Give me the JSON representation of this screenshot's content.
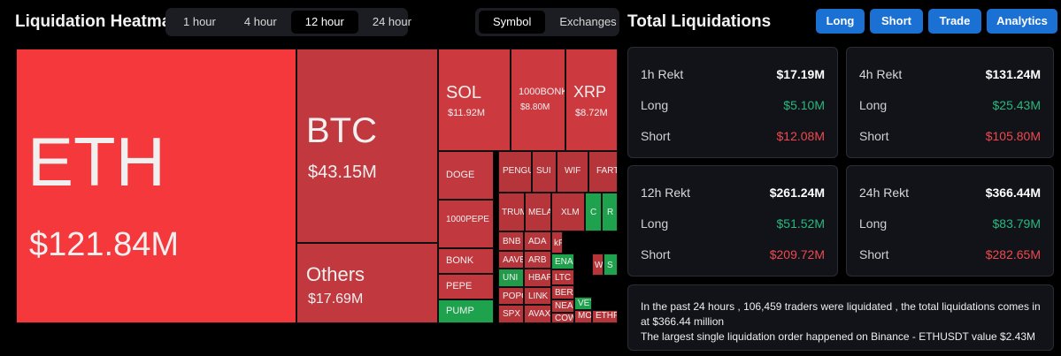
{
  "header": {
    "heatmap_title": "Liquidation Heatmap",
    "total_title": "Total Liquidations",
    "time_tabs": [
      "1 hour",
      "4 hour",
      "12 hour",
      "24 hour"
    ],
    "time_active": "12 hour",
    "view_tabs": [
      "Symbol",
      "Exchanges"
    ],
    "view_active": "Symbol",
    "buttons": [
      "Long",
      "Short",
      "Trade",
      "Analytics"
    ]
  },
  "colors": {
    "accent": "#1b71d3",
    "long": "#27b97d",
    "short": "#f0484f",
    "heat_red": "#f4383c",
    "heat_green": "#1fa24e"
  },
  "heatmap": {
    "tiles": [
      {
        "symbol": "ETH",
        "value": "$121.84M"
      },
      {
        "symbol": "BTC",
        "value": "$43.15M"
      },
      {
        "symbol": "Others",
        "value": "$17.69M"
      },
      {
        "symbol": "SOL",
        "value": "$11.92M"
      },
      {
        "symbol": "1000BONK",
        "value": "$8.80M"
      },
      {
        "symbol": "XRP",
        "value": "$8.72M"
      },
      {
        "symbol": "DOGE",
        "value": ""
      },
      {
        "symbol": "1000PEPE",
        "value": ""
      },
      {
        "symbol": "BONK",
        "value": ""
      },
      {
        "symbol": "PEPE",
        "value": ""
      },
      {
        "symbol": "PUMP",
        "value": ""
      },
      {
        "symbol": "PENGU",
        "value": ""
      },
      {
        "symbol": "SUI",
        "value": ""
      },
      {
        "symbol": "WIF",
        "value": ""
      },
      {
        "symbol": "FARTCOIN",
        "value": ""
      },
      {
        "symbol": "TRUMP",
        "value": ""
      },
      {
        "symbol": "MELANIA",
        "value": ""
      },
      {
        "symbol": "XLM",
        "value": ""
      },
      {
        "symbol": "C",
        "value": ""
      },
      {
        "symbol": "R",
        "value": ""
      },
      {
        "symbol": "BNB",
        "value": ""
      },
      {
        "symbol": "ADA",
        "value": ""
      },
      {
        "symbol": "AAVE",
        "value": ""
      },
      {
        "symbol": "ARB",
        "value": ""
      },
      {
        "symbol": "UNI",
        "value": ""
      },
      {
        "symbol": "HBAR",
        "value": ""
      },
      {
        "symbol": "POPCAT",
        "value": ""
      },
      {
        "symbol": "LINK",
        "value": ""
      },
      {
        "symbol": "SPX",
        "value": ""
      },
      {
        "symbol": "AVAX",
        "value": ""
      },
      {
        "symbol": "ENA",
        "value": ""
      },
      {
        "symbol": "LTC",
        "value": ""
      },
      {
        "symbol": "BERA",
        "value": ""
      },
      {
        "symbol": "NEAR",
        "value": ""
      },
      {
        "symbol": "COW",
        "value": ""
      },
      {
        "symbol": "VET",
        "value": ""
      },
      {
        "symbol": "MOODENG",
        "value": ""
      },
      {
        "symbol": "ETHFI",
        "value": ""
      },
      {
        "symbol": "kPEPE",
        "value": ""
      },
      {
        "symbol": "W",
        "value": ""
      },
      {
        "symbol": "S",
        "value": ""
      }
    ]
  },
  "rekt_cards": [
    {
      "period": "1h Rekt",
      "total": "$17.19M",
      "long_label": "Long",
      "long": "$5.10M",
      "short_label": "Short",
      "short": "$12.08M"
    },
    {
      "period": "4h Rekt",
      "total": "$131.24M",
      "long_label": "Long",
      "long": "$25.43M",
      "short_label": "Short",
      "short": "$105.80M"
    },
    {
      "period": "12h Rekt",
      "total": "$261.24M",
      "long_label": "Long",
      "long": "$51.52M",
      "short_label": "Short",
      "short": "$209.72M"
    },
    {
      "period": "24h Rekt",
      "total": "$366.44M",
      "long_label": "Long",
      "long": "$83.79M",
      "short_label": "Short",
      "short": "$282.65M"
    }
  ],
  "summary": {
    "line1": "In the past 24 hours , 106,459 traders were liquidated , the total liquidations comes in at $366.44 million",
    "line2": "The largest single liquidation order happened on Binance - ETHUSDT value $2.43M"
  }
}
